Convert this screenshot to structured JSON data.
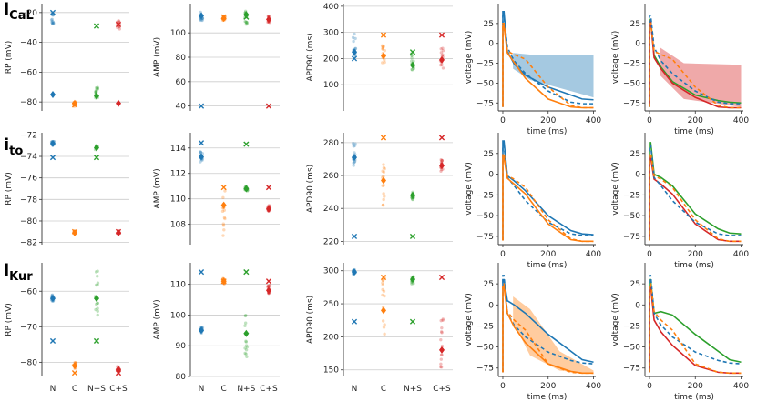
{
  "figure": {
    "row_labels": [
      {
        "main": "i",
        "sub": "CaL"
      },
      {
        "main": "i",
        "sub": "to"
      },
      {
        "main": "i",
        "sub": "Kur"
      }
    ],
    "categories": [
      "N",
      "C",
      "N+S",
      "C+S"
    ],
    "colors": {
      "N": "#1f77b4",
      "C": "#ff7f0e",
      "N+S": "#2ca02c",
      "C+S": "#d62728",
      "grid": "#cccccc",
      "axis": "#333333"
    },
    "voltage_axis": {
      "xlabel": "time (ms)",
      "ylabel": "voltage (mV)",
      "xticks": [
        0,
        200,
        400
      ],
      "xlim": [
        -20,
        410
      ]
    }
  },
  "chart_data": [
    {
      "id": "rp-cal",
      "type": "scatter",
      "ylabel": "RP (mV)",
      "ylim": [
        -86,
        -14
      ],
      "yticks": [
        -20,
        -40,
        -60,
        -80
      ],
      "show_xticks": false,
      "series": [
        {
          "name": "N",
          "mean": -75,
          "x_marker": -20,
          "cluster": [
            -18,
            -28
          ]
        },
        {
          "name": "C",
          "mean": -81,
          "x_marker": -82,
          "cluster": [
            -80,
            -83
          ]
        },
        {
          "name": "N+S",
          "mean": -76,
          "x_marker": -29,
          "cluster": [
            -70,
            -78
          ]
        },
        {
          "name": "C+S",
          "mean": -81,
          "x_marker": -28,
          "cluster": [
            -25,
            -32
          ]
        }
      ]
    },
    {
      "id": "amp-cal",
      "type": "scatter",
      "ylabel": "AMP (mV)",
      "ylim": [
        36,
        124
      ],
      "yticks": [
        40,
        60,
        80,
        100
      ],
      "show_xticks": false,
      "series": [
        {
          "name": "N",
          "mean": 114,
          "x_marker": 40,
          "cluster": [
            110,
            117
          ]
        },
        {
          "name": "C",
          "mean": 112,
          "x_marker": 113,
          "cluster": [
            110,
            114
          ]
        },
        {
          "name": "N+S",
          "mean": 115,
          "x_marker": 113,
          "cluster": [
            106,
            120
          ]
        },
        {
          "name": "C+S",
          "mean": 111,
          "x_marker": 40,
          "cluster": [
            108,
            114
          ]
        }
      ]
    },
    {
      "id": "apd-cal",
      "type": "scatter",
      "ylabel": "APD90 (ms)",
      "ylim": [
        0,
        410
      ],
      "yticks": [
        100,
        200,
        300,
        400
      ],
      "show_xticks": false,
      "series": [
        {
          "name": "N",
          "mean": 225,
          "x_marker": 200,
          "cluster": [
            200,
            300
          ]
        },
        {
          "name": "C",
          "mean": 210,
          "x_marker": 290,
          "cluster": [
            180,
            250
          ]
        },
        {
          "name": "N+S",
          "mean": 175,
          "x_marker": 225,
          "cluster": [
            150,
            220
          ]
        },
        {
          "name": "C+S",
          "mean": 195,
          "x_marker": 290,
          "cluster": [
            160,
            240
          ]
        }
      ]
    },
    {
      "id": "rp-to",
      "type": "scatter",
      "ylabel": "RP (mV)",
      "ylim": [
        -82.2,
        -71.8
      ],
      "yticks": [
        -72,
        -74,
        -76,
        -78,
        -80,
        -82
      ],
      "show_xticks": false,
      "series": [
        {
          "name": "N",
          "mean": -72.8,
          "x_marker": -74.1,
          "cluster": [
            -72.6,
            -73.0
          ]
        },
        {
          "name": "C",
          "mean": -81.1,
          "x_marker": -81.0,
          "cluster": [
            -80.9,
            -81.2
          ]
        },
        {
          "name": "N+S",
          "mean": -73.2,
          "x_marker": -74.1,
          "cluster": [
            -73.0,
            -73.4
          ]
        },
        {
          "name": "C+S",
          "mean": -81.1,
          "x_marker": -81.0,
          "cluster": [
            -81.0,
            -81.2
          ]
        }
      ]
    },
    {
      "id": "amp-to",
      "type": "scatter",
      "ylabel": "AMP (mV)",
      "ylim": [
        106.4,
        115.2
      ],
      "yticks": [
        108,
        110,
        112,
        114
      ],
      "show_xticks": false,
      "series": [
        {
          "name": "N",
          "mean": 113.3,
          "x_marker": 114.4,
          "cluster": [
            112.8,
            113.7
          ]
        },
        {
          "name": "C",
          "mean": 109.5,
          "x_marker": 110.9,
          "cluster": [
            107.0,
            110.8
          ]
        },
        {
          "name": "N+S",
          "mean": 110.8,
          "x_marker": 114.3,
          "cluster": [
            110.6,
            111.0
          ]
        },
        {
          "name": "C+S",
          "mean": 109.2,
          "x_marker": 110.9,
          "cluster": [
            109.0,
            109.5
          ]
        }
      ]
    },
    {
      "id": "apd-to",
      "type": "scatter",
      "ylabel": "APD90 (ms)",
      "ylim": [
        218,
        286
      ],
      "yticks": [
        220,
        240,
        260,
        280
      ],
      "show_xticks": false,
      "series": [
        {
          "name": "N",
          "mean": 271,
          "x_marker": 223,
          "cluster": [
            265,
            280
          ]
        },
        {
          "name": "C",
          "mean": 257,
          "x_marker": 283,
          "cluster": [
            240,
            268
          ]
        },
        {
          "name": "N+S",
          "mean": 248,
          "x_marker": 223,
          "cluster": [
            245,
            250
          ]
        },
        {
          "name": "C+S",
          "mean": 266,
          "x_marker": 283,
          "cluster": [
            262,
            270
          ]
        }
      ]
    },
    {
      "id": "rp-kur",
      "type": "scatter",
      "ylabel": "RP (mV)",
      "ylim": [
        -84,
        -52
      ],
      "yticks": [
        -60,
        -70,
        -80
      ],
      "show_xticks": true,
      "series": [
        {
          "name": "N",
          "mean": -62,
          "x_marker": -74,
          "cluster": [
            -61,
            -63
          ]
        },
        {
          "name": "C",
          "mean": -81,
          "x_marker": -83,
          "cluster": [
            -80,
            -82
          ]
        },
        {
          "name": "N+S",
          "mean": -62,
          "x_marker": -74,
          "cluster": [
            -54,
            -68
          ]
        },
        {
          "name": "C+S",
          "mean": -82,
          "x_marker": -83,
          "cluster": [
            -81,
            -83
          ]
        }
      ]
    },
    {
      "id": "amp-kur",
      "type": "scatter",
      "ylabel": "AMP (mV)",
      "ylim": [
        80,
        117
      ],
      "yticks": [
        80,
        90,
        100,
        110
      ],
      "show_xticks": true,
      "series": [
        {
          "name": "N",
          "mean": 95,
          "x_marker": 114,
          "cluster": [
            94,
            96
          ]
        },
        {
          "name": "C",
          "mean": 111,
          "x_marker": 111,
          "cluster": [
            110,
            112
          ]
        },
        {
          "name": "N+S",
          "mean": 94,
          "x_marker": 114,
          "cluster": [
            86,
            101
          ]
        },
        {
          "name": "C+S",
          "mean": 108,
          "x_marker": 111,
          "cluster": [
            106,
            110
          ]
        }
      ]
    },
    {
      "id": "apd-kur",
      "type": "scatter",
      "ylabel": "APD90 (ms)",
      "ylim": [
        140,
        312
      ],
      "yticks": [
        150,
        200,
        250,
        300
      ],
      "show_xticks": true,
      "series": [
        {
          "name": "N",
          "mean": 298,
          "x_marker": 223,
          "cluster": [
            295,
            302
          ]
        },
        {
          "name": "C",
          "mean": 240,
          "x_marker": 290,
          "cluster": [
            200,
            290
          ]
        },
        {
          "name": "N+S",
          "mean": 287,
          "x_marker": 223,
          "cluster": [
            280,
            293
          ]
        },
        {
          "name": "C+S",
          "mean": 180,
          "x_marker": 290,
          "cluster": [
            150,
            230
          ]
        }
      ]
    },
    {
      "id": "v-cal-left",
      "type": "line",
      "xlabel": "time (ms)",
      "ylabel": "voltage (mV)",
      "ylim": [
        -85,
        50
      ],
      "yticks": [
        -75,
        -50,
        -25,
        0,
        25
      ],
      "band": {
        "color": "N",
        "t": [
          45,
          120,
          350,
          400
        ],
        "upper": [
          -12,
          -14,
          -14,
          -15
        ],
        "lower": [
          -32,
          -46,
          -64,
          -68
        ]
      },
      "series": [
        {
          "name": "N",
          "style": "solid",
          "v": [
            40,
            -10,
            -26,
            -40,
            -55,
            -65,
            -70,
            -71
          ]
        },
        {
          "name": "N",
          "style": "dashed",
          "v": [
            35,
            -5,
            -22,
            -38,
            -60,
            -74,
            -76,
            -76
          ]
        },
        {
          "name": "C",
          "style": "solid",
          "v": [
            22,
            -12,
            -24,
            -44,
            -70,
            -80,
            -81,
            -81
          ]
        },
        {
          "name": "C",
          "style": "dashed",
          "v": [
            25,
            -10,
            -14,
            -20,
            -55,
            -78,
            -81,
            -81
          ]
        }
      ]
    },
    {
      "id": "v-cal-right",
      "type": "line",
      "xlabel": "time (ms)",
      "ylabel": "voltage (mV)",
      "ylim": [
        -85,
        50
      ],
      "yticks": [
        -75,
        -50,
        -25,
        0,
        25
      ],
      "band": {
        "color": "C+S",
        "t": [
          45,
          150,
          400
        ],
        "upper": [
          -5,
          -25,
          -27
        ],
        "lower": [
          -40,
          -70,
          -80
        ]
      },
      "series": [
        {
          "name": "N+S",
          "style": "solid",
          "v": [
            30,
            -15,
            -30,
            -48,
            -65,
            -72,
            -74,
            -75
          ]
        },
        {
          "name": "C+S",
          "style": "solid",
          "v": [
            28,
            -18,
            -32,
            -50,
            -68,
            -80,
            -81,
            -81
          ]
        },
        {
          "name": "N",
          "style": "dashed",
          "v": [
            35,
            -5,
            -22,
            -38,
            -60,
            -74,
            -76,
            -76
          ]
        },
        {
          "name": "C",
          "style": "dashed",
          "v": [
            25,
            -10,
            -14,
            -20,
            -55,
            -78,
            -81,
            -81
          ]
        }
      ]
    },
    {
      "id": "v-to-left",
      "type": "line",
      "xlabel": "time (ms)",
      "ylabel": "voltage (mV)",
      "ylim": [
        -85,
        50
      ],
      "yticks": [
        -75,
        -50,
        -25,
        0,
        25
      ],
      "series": [
        {
          "name": "N",
          "style": "solid",
          "v": [
            40,
            -2,
            -8,
            -20,
            -50,
            -68,
            -72,
            -73
          ]
        },
        {
          "name": "N",
          "style": "dashed",
          "v": [
            35,
            -4,
            -14,
            -32,
            -58,
            -72,
            -74,
            -74
          ]
        },
        {
          "name": "C",
          "style": "solid",
          "v": [
            20,
            -5,
            -12,
            -24,
            -60,
            -79,
            -81,
            -81
          ]
        },
        {
          "name": "C",
          "style": "dashed",
          "v": [
            25,
            -2,
            -6,
            -16,
            -55,
            -78,
            -81,
            -81
          ]
        }
      ]
    },
    {
      "id": "v-to-right",
      "type": "line",
      "xlabel": "time (ms)",
      "ylabel": "voltage (mV)",
      "ylim": [
        -85,
        50
      ],
      "yticks": [
        -75,
        -50,
        -25,
        0,
        25
      ],
      "series": [
        {
          "name": "N+S",
          "style": "solid",
          "v": [
            38,
            0,
            -4,
            -14,
            -48,
            -66,
            -71,
            -72
          ]
        },
        {
          "name": "C+S",
          "style": "solid",
          "v": [
            20,
            -6,
            -12,
            -24,
            -60,
            -79,
            -81,
            -81
          ]
        },
        {
          "name": "N",
          "style": "dashed",
          "v": [
            35,
            -4,
            -14,
            -32,
            -58,
            -72,
            -74,
            -74
          ]
        },
        {
          "name": "C",
          "style": "dashed",
          "v": [
            25,
            -2,
            -6,
            -16,
            -55,
            -78,
            -81,
            -81
          ]
        }
      ]
    },
    {
      "id": "v-kur-left",
      "type": "line",
      "xlabel": "time (ms)",
      "ylabel": "voltage (mV)",
      "ylim": [
        -85,
        50
      ],
      "yticks": [
        -75,
        -50,
        -25,
        0,
        25
      ],
      "band": {
        "color": "C",
        "t": [
          45,
          120,
          250,
          400
        ],
        "upper": [
          10,
          -5,
          -55,
          -78
        ],
        "lower": [
          -20,
          -60,
          -78,
          -82
        ]
      },
      "series": [
        {
          "name": "N",
          "style": "solid",
          "v": [
            30,
            5,
            0,
            -10,
            -35,
            -55,
            -65,
            -68
          ]
        },
        {
          "name": "N",
          "style": "dashed",
          "v": [
            35,
            -10,
            -24,
            -38,
            -56,
            -66,
            -69,
            -70
          ]
        },
        {
          "name": "C",
          "style": "solid",
          "v": [
            22,
            -10,
            -26,
            -45,
            -70,
            -79,
            -81,
            -81
          ]
        },
        {
          "name": "C",
          "style": "dashed",
          "v": [
            25,
            -8,
            -18,
            -30,
            -70,
            -80,
            -81,
            -81
          ]
        }
      ]
    },
    {
      "id": "v-kur-right",
      "type": "line",
      "xlabel": "time (ms)",
      "ylabel": "voltage (mV)",
      "ylim": [
        -85,
        50
      ],
      "yticks": [
        -75,
        -50,
        -25,
        0,
        25
      ],
      "series": [
        {
          "name": "N+S",
          "style": "solid",
          "v": [
            30,
            -10,
            -8,
            -12,
            -35,
            -55,
            -65,
            -68
          ]
        },
        {
          "name": "C+S",
          "style": "solid",
          "v": [
            22,
            -18,
            -32,
            -48,
            -72,
            -80,
            -81,
            -81
          ]
        },
        {
          "name": "N",
          "style": "dashed",
          "v": [
            35,
            -10,
            -24,
            -38,
            -56,
            -66,
            -69,
            -70
          ]
        },
        {
          "name": "C",
          "style": "dashed",
          "v": [
            25,
            -8,
            -18,
            -30,
            -70,
            -80,
            -81,
            -81
          ]
        }
      ]
    }
  ],
  "time_points": [
    5,
    20,
    50,
    100,
    200,
    300,
    350,
    400
  ]
}
